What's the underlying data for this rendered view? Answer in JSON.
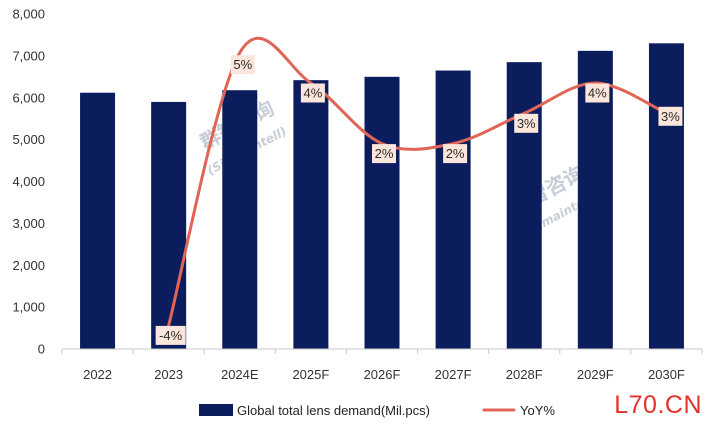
{
  "chart_data": {
    "type": "bar",
    "categories": [
      "2022",
      "2023",
      "2024E",
      "2025F",
      "2026F",
      "2027F",
      "2028F",
      "2029F",
      "2030F"
    ],
    "series": [
      {
        "name": "Global total lens demand(Mil.pcs)",
        "type": "bar",
        "axis": "left",
        "values": [
          6120,
          5900,
          6180,
          6420,
          6500,
          6650,
          6850,
          7120,
          7300
        ]
      },
      {
        "name": "YoY%",
        "type": "line",
        "axis": "right",
        "smooth": true,
        "values": [
          null,
          -4,
          5,
          4,
          2,
          2,
          3,
          4,
          3
        ]
      }
    ],
    "y_left": {
      "ylim": [
        0,
        8000
      ],
      "ticks": [
        "0",
        "1,000",
        "2,000",
        "3,000",
        "4,000",
        "5,000",
        "6,000",
        "7,000",
        "8,000"
      ]
    },
    "data_labels": [
      {
        "category": "2023",
        "text": "-4%"
      },
      {
        "category": "2024E",
        "text": "5%"
      },
      {
        "category": "2025F",
        "text": "4%"
      },
      {
        "category": "2026F",
        "text": "2%"
      },
      {
        "category": "2027F",
        "text": "2%"
      },
      {
        "category": "2028F",
        "text": "3%"
      },
      {
        "category": "2029F",
        "text": "4%"
      },
      {
        "category": "2030F",
        "text": "3%"
      }
    ],
    "legend": {
      "position": "bottom"
    },
    "grid": false,
    "colors": {
      "bar": "#0b1d5c",
      "line": "#e06557",
      "label_bg": "#fbe6dc",
      "axis": "#c8c8c8"
    }
  },
  "watermarks": [
    "群智咨询",
    "(Sigmaintell)",
    "群智咨询",
    "(Sigmaintell)"
  ],
  "site_logo": "L70.CN"
}
